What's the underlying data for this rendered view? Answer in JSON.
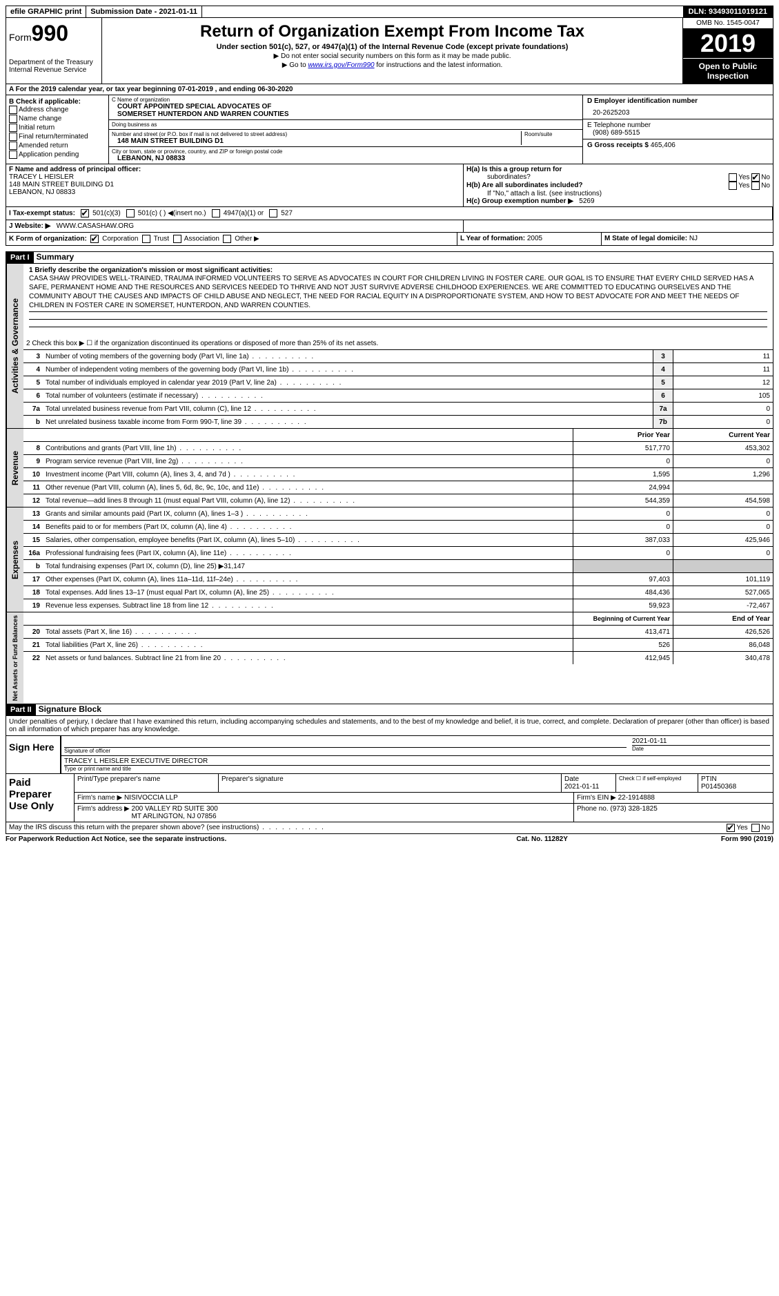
{
  "topbar": {
    "efile": "efile GRAPHIC print",
    "submission": "Submission Date - 2021-01-11",
    "dln": "DLN: 93493011019121"
  },
  "header": {
    "form_label": "Form",
    "form_num": "990",
    "dept": "Department of the Treasury\nInternal Revenue Service",
    "title": "Return of Organization Exempt From Income Tax",
    "subtitle": "Under section 501(c), 527, or 4947(a)(1) of the Internal Revenue Code (except private foundations)",
    "notice1": "▶ Do not enter social security numbers on this form as it may be made public.",
    "notice2_pre": "▶ Go to ",
    "notice2_link": "www.irs.gov/Form990",
    "notice2_post": " for instructions and the latest information.",
    "omb": "OMB No. 1545-0047",
    "year": "2019",
    "open": "Open to Public Inspection"
  },
  "rowA": "A For the 2019 calendar year, or tax year beginning 07-01-2019    , and ending 06-30-2020",
  "sectionB": {
    "label": "B Check if applicable:",
    "items": [
      "Address change",
      "Name change",
      "Initial return",
      "Final return/terminated",
      "Amended return",
      "Application pending"
    ]
  },
  "sectionC": {
    "name_label": "C Name of organization",
    "name": "COURT APPOINTED SPECIAL ADVOCATES OF\nSOMERSET HUNTERDON AND WARREN COUNTIES",
    "dba_label": "Doing business as",
    "dba": "",
    "street_label": "Number and street (or P.O. box if mail is not delivered to street address)",
    "street": "148 MAIN STREET BUILDING D1",
    "room_label": "Room/suite",
    "city_label": "City or town, state or province, country, and ZIP or foreign postal code",
    "city": "LEBANON, NJ  08833"
  },
  "sectionD": {
    "ein_label": "D Employer identification number",
    "ein": "20-2625203",
    "phone_label": "E Telephone number",
    "phone": "(908) 689-5515",
    "receipts_label": "G Gross receipts $",
    "receipts": "465,406"
  },
  "sectionF": {
    "label": "F  Name and address of principal officer:",
    "name": "TRACEY L HEISLER",
    "addr1": "148 MAIN STREET BUILDING D1",
    "addr2": "LEBANON, NJ  08833"
  },
  "sectionH": {
    "a_label": "H(a)  Is this a group return for",
    "a_sub": "subordinates?",
    "a_no": "No",
    "b_label": "H(b)  Are all subordinates included?",
    "b_note": "If \"No,\" attach a list. (see instructions)",
    "c_label": "H(c)  Group exemption number ▶",
    "c_val": "5269"
  },
  "rowI": {
    "label": "I   Tax-exempt status:",
    "opt1": "501(c)(3)",
    "opt2": "501(c) (  ) ◀(insert no.)",
    "opt3": "4947(a)(1) or",
    "opt4": "527"
  },
  "rowJ": {
    "label": "J  Website: ▶",
    "val": "WWW.CASASHAW.ORG"
  },
  "rowK": {
    "label": "K Form of organization:",
    "opts": [
      "Corporation",
      "Trust",
      "Association",
      "Other ▶"
    ],
    "l_label": "L Year of formation:",
    "l_val": "2005",
    "m_label": "M State of legal domicile:",
    "m_val": "NJ"
  },
  "part1": {
    "header": "Part I",
    "title": "Summary",
    "line1_label": "1  Briefly describe the organization's mission or most significant activities:",
    "mission": "CASA SHAW PROVIDES WELL-TRAINED, TRAUMA INFORMED VOLUNTEERS TO SERVE AS ADVOCATES IN COURT FOR CHILDREN LIVING IN FOSTER CARE. OUR GOAL IS TO ENSURE THAT EVERY CHILD SERVED HAS A SAFE, PERMANENT HOME AND THE RESOURCES AND SERVICES NEEDED TO THRIVE AND NOT JUST SURVIVE ADVERSE CHILDHOOD EXPERIENCES. WE ARE COMMITTED TO EDUCATING OURSELVES AND THE COMMUNITY ABOUT THE CAUSES AND IMPACTS OF CHILD ABUSE AND NEGLECT, THE NEED FOR RACIAL EQUITY IN A DISPROPORTIONATE SYSTEM, AND HOW TO BEST ADVOCATE FOR AND MEET THE NEEDS OF CHILDREN IN FOSTER CARE IN SOMERSET, HUNTERDON, AND WARREN COUNTIES.",
    "line2": "2   Check this box ▶ ☐ if the organization discontinued its operations or disposed of more than 25% of its net assets.",
    "lines_ag": [
      {
        "n": "3",
        "desc": "Number of voting members of the governing body (Part VI, line 1a)",
        "box": "3",
        "v": "11"
      },
      {
        "n": "4",
        "desc": "Number of independent voting members of the governing body (Part VI, line 1b)",
        "box": "4",
        "v": "11"
      },
      {
        "n": "5",
        "desc": "Total number of individuals employed in calendar year 2019 (Part V, line 2a)",
        "box": "5",
        "v": "12"
      },
      {
        "n": "6",
        "desc": "Total number of volunteers (estimate if necessary)",
        "box": "6",
        "v": "105"
      },
      {
        "n": "7a",
        "desc": "Total unrelated business revenue from Part VIII, column (C), line 12",
        "box": "7a",
        "v": "0"
      },
      {
        "n": "b",
        "desc": "Net unrelated business taxable income from Form 990-T, line 39",
        "box": "7b",
        "v": "0"
      }
    ],
    "col_prior": "Prior Year",
    "col_current": "Current Year",
    "revenue": [
      {
        "n": "8",
        "desc": "Contributions and grants (Part VIII, line 1h)",
        "p": "517,770",
        "c": "453,302"
      },
      {
        "n": "9",
        "desc": "Program service revenue (Part VIII, line 2g)",
        "p": "0",
        "c": "0"
      },
      {
        "n": "10",
        "desc": "Investment income (Part VIII, column (A), lines 3, 4, and 7d )",
        "p": "1,595",
        "c": "1,296"
      },
      {
        "n": "11",
        "desc": "Other revenue (Part VIII, column (A), lines 5, 6d, 8c, 9c, 10c, and 11e)",
        "p": "24,994",
        "c": ""
      },
      {
        "n": "12",
        "desc": "Total revenue—add lines 8 through 11 (must equal Part VIII, column (A), line 12)",
        "p": "544,359",
        "c": "454,598"
      }
    ],
    "expenses": [
      {
        "n": "13",
        "desc": "Grants and similar amounts paid (Part IX, column (A), lines 1–3 )",
        "p": "0",
        "c": "0"
      },
      {
        "n": "14",
        "desc": "Benefits paid to or for members (Part IX, column (A), line 4)",
        "p": "0",
        "c": "0"
      },
      {
        "n": "15",
        "desc": "Salaries, other compensation, employee benefits (Part IX, column (A), lines 5–10)",
        "p": "387,033",
        "c": "425,946"
      },
      {
        "n": "16a",
        "desc": "Professional fundraising fees (Part IX, column (A), line 11e)",
        "p": "0",
        "c": "0"
      },
      {
        "n": "b",
        "desc": "Total fundraising expenses (Part IX, column (D), line 25) ▶31,147",
        "gray": true
      },
      {
        "n": "17",
        "desc": "Other expenses (Part IX, column (A), lines 11a–11d, 11f–24e)",
        "p": "97,403",
        "c": "101,119"
      },
      {
        "n": "18",
        "desc": "Total expenses. Add lines 13–17 (must equal Part IX, column (A), line 25)",
        "p": "484,436",
        "c": "527,065"
      },
      {
        "n": "19",
        "desc": "Revenue less expenses. Subtract line 18 from line 12",
        "p": "59,923",
        "c": "-72,467"
      }
    ],
    "col_begin": "Beginning of Current Year",
    "col_end": "End of Year",
    "netassets": [
      {
        "n": "20",
        "desc": "Total assets (Part X, line 16)",
        "p": "413,471",
        "c": "426,526"
      },
      {
        "n": "21",
        "desc": "Total liabilities (Part X, line 26)",
        "p": "526",
        "c": "86,048"
      },
      {
        "n": "22",
        "desc": "Net assets or fund balances. Subtract line 21 from line 20",
        "p": "412,945",
        "c": "340,478"
      }
    ]
  },
  "vtabs": {
    "ag": "Activities & Governance",
    "rev": "Revenue",
    "exp": "Expenses",
    "na": "Net Assets or Fund Balances"
  },
  "part2": {
    "header": "Part II",
    "title": "Signature Block",
    "declare": "Under penalties of perjury, I declare that I have examined this return, including accompanying schedules and statements, and to the best of my knowledge and belief, it is true, correct, and complete. Declaration of preparer (other than officer) is based on all information of which preparer has any knowledge.",
    "sign_here": "Sign Here",
    "sig_officer_lbl": "Signature of officer",
    "date": "2021-01-11",
    "date_lbl": "Date",
    "officer_name": "TRACEY L HEISLER  EXECUTIVE DIRECTOR",
    "officer_name_lbl": "Type or print name and title",
    "paid_prep": "Paid Preparer Use Only",
    "prep_name_lbl": "Print/Type preparer's name",
    "prep_sig_lbl": "Preparer's signature",
    "prep_date": "2021-01-11",
    "self_emp": "Check ☐ if self-employed",
    "ptin_lbl": "PTIN",
    "ptin": "P01450368",
    "firm_name_lbl": "Firm's name   ▶",
    "firm_name": "NISIVOCCIA LLP",
    "firm_ein_lbl": "Firm's EIN ▶",
    "firm_ein": "22-1914888",
    "firm_addr_lbl": "Firm's address ▶",
    "firm_addr": "200 VALLEY RD SUITE 300\nMT ARLINGTON, NJ  07856",
    "phone_lbl": "Phone no.",
    "phone": "(973) 328-1825"
  },
  "bottom": "May the IRS discuss this return with the preparer shown above? (see instructions)",
  "footer": {
    "left": "For Paperwork Reduction Act Notice, see the separate instructions.",
    "mid": "Cat. No. 11282Y",
    "right": "Form 990 (2019)"
  }
}
